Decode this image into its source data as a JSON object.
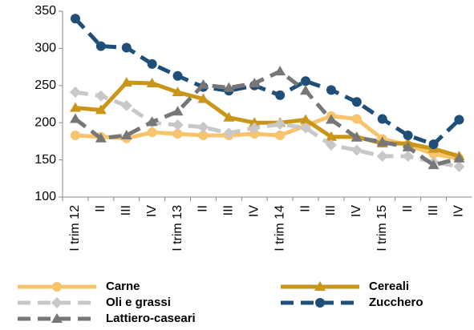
{
  "chart_data": {
    "type": "line",
    "categories": [
      "I trim 12",
      "II",
      "III",
      "IV",
      "I trim 13",
      "II",
      "III",
      "IV",
      "I trim 14",
      "II",
      "III",
      "IV",
      "I trim 15",
      "II",
      "III",
      "IV"
    ],
    "ylim": [
      100,
      350
    ],
    "yticks": [
      100,
      150,
      200,
      250,
      300,
      350
    ],
    "series": [
      {
        "name": "Carne",
        "color": "#f7c46c",
        "marker": "circle",
        "dash": "solid",
        "values": [
          183,
          181,
          179,
          187,
          185,
          183,
          183,
          185,
          183,
          196,
          209,
          205,
          178,
          170,
          158,
          152
        ]
      },
      {
        "name": "Cereali",
        "color": "#c9961a",
        "marker": "triangle",
        "dash": "solid",
        "values": [
          220,
          217,
          254,
          253,
          241,
          232,
          207,
          200,
          200,
          204,
          181,
          181,
          172,
          172,
          165,
          155
        ]
      },
      {
        "name": "Oli e grassi",
        "color": "#c8c8c8",
        "marker": "diamond",
        "dash": "dashed",
        "values": [
          241,
          236,
          223,
          200,
          197,
          194,
          186,
          193,
          198,
          193,
          170,
          163,
          155,
          155,
          147,
          141
        ]
      },
      {
        "name": "Zucchero",
        "color": "#1f4e79",
        "marker": "circle",
        "dash": "dashed",
        "values": [
          340,
          303,
          301,
          279,
          263,
          248,
          243,
          250,
          237,
          256,
          244,
          228,
          205,
          183,
          171,
          204
        ]
      },
      {
        "name": "Lattiero-caseari",
        "color": "#777777",
        "marker": "triangle",
        "dash": "dashed",
        "values": [
          205,
          179,
          183,
          201,
          215,
          251,
          247,
          253,
          269,
          243,
          204,
          180,
          174,
          167,
          143,
          152
        ]
      }
    ]
  }
}
